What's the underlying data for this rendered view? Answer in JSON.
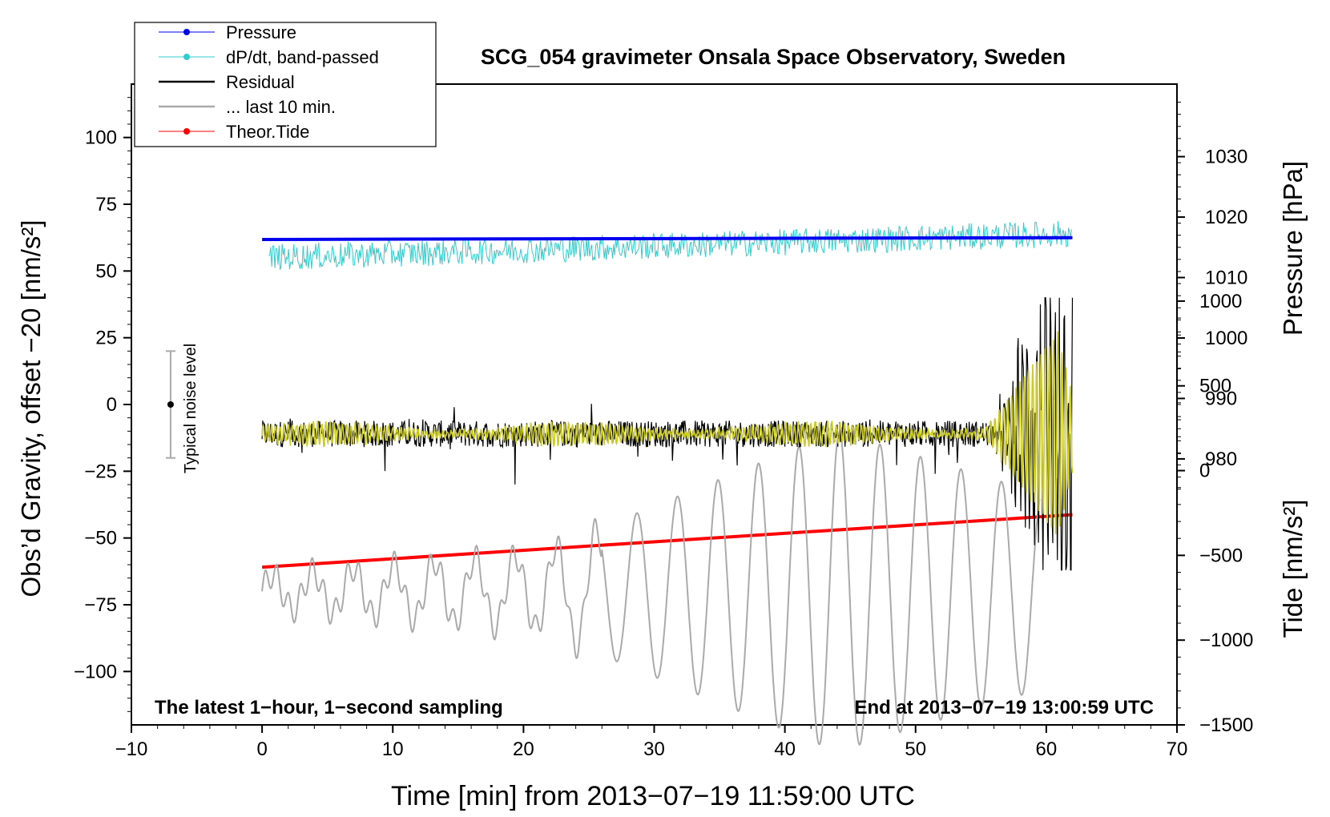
{
  "chart_data": {
    "type": "line",
    "title": "SCG_054 gravimeter Onsala Space Observatory, Sweden",
    "xlabel": "Time [min] from 2013−07−19 11:59:00 UTC",
    "ylabel_left": "Obs’d Gravity, offset −20 [nm/s²]",
    "ylabel_pressure": "Pressure [hPa]",
    "ylabel_tide": "Tide [nm/s²]",
    "xlim": [
      -10,
      70
    ],
    "ylim_left": [
      -120,
      120
    ],
    "ylim_pressure": [
      936,
      1042
    ],
    "ylim_tide": [
      -1500,
      2280
    ],
    "x_ticks": [
      -10,
      0,
      10,
      20,
      30,
      40,
      50,
      60,
      70
    ],
    "x_tick_labels": [
      "−10",
      "0",
      "10",
      "20",
      "30",
      "40",
      "50",
      "60",
      "70"
    ],
    "y_left_ticks": [
      100,
      75,
      50,
      25,
      0,
      -25,
      -50,
      -75,
      -100
    ],
    "y_left_tick_labels": [
      "100",
      "75",
      "50",
      "25",
      "0",
      "−25",
      "−50",
      "−75",
      "−100"
    ],
    "pressure_ticks": [
      1030,
      1020,
      1010,
      1000,
      990,
      980
    ],
    "pressure_tick_labels": [
      "1030",
      "1020",
      "1010",
      "1000",
      "990",
      "980"
    ],
    "tide_ticks": [
      1000,
      500,
      0,
      -500,
      -1000,
      -1500
    ],
    "tide_tick_labels": [
      "1000",
      "500",
      "0",
      "−500",
      "−1000",
      "−1500"
    ],
    "legend": {
      "position": "top-left",
      "entries": [
        {
          "label": "Pressure",
          "color": "#0000ee",
          "marker": true
        },
        {
          "label": "dP/dt, band-passed",
          "color": "#33cccc",
          "marker": true
        },
        {
          "label": "Residual",
          "color": "#000000",
          "marker": false
        },
        {
          "label": "... last 10 min.",
          "color": "#aaaaaa",
          "marker": false
        },
        {
          "label": "Theor.Tide",
          "color": "#ff0000",
          "marker": true
        }
      ]
    },
    "annotations": {
      "bottom_left": "The latest 1−hour, 1−second sampling",
      "bottom_right": "End at 2013−07−19 13:00:59 UTC",
      "noise_label": "Typical noise level"
    },
    "noise_bar": {
      "x": -7,
      "center": 0,
      "low": -20,
      "high": 20
    },
    "series": [
      {
        "name": "Pressure",
        "axis": "pressure",
        "color": "#0000ee",
        "start": [
          0,
          1016.3
        ],
        "end": [
          62,
          1016.6
        ]
      },
      {
        "name": "dP/dt, band-passed",
        "axis": "left",
        "color": "#33cccc",
        "start": [
          0,
          55
        ],
        "end": [
          62,
          64
        ],
        "amplitude": 5
      },
      {
        "name": "Residual",
        "axis": "left",
        "color": "#000000",
        "base": -11,
        "x_range": [
          0,
          62
        ],
        "max_amplitude": 50
      },
      {
        "name": "Residual (filtered)",
        "axis": "left",
        "color": "#cccc22",
        "base": -11,
        "x_range": [
          0,
          62
        ],
        "max_amplitude": 35
      },
      {
        "name": "... last 10 min.",
        "axis": "left",
        "color": "#aaaaaa",
        "base": -70,
        "x_range": [
          0,
          59.5
        ],
        "max_amplitude": 60
      },
      {
        "name": "Theor.Tide",
        "axis": "tide",
        "color": "#ff0000",
        "start": [
          0,
          -570
        ],
        "end": [
          62,
          -260
        ]
      }
    ]
  }
}
